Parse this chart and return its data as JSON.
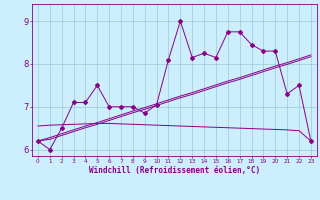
{
  "xlabel": "Windchill (Refroidissement éolien,°C)",
  "bg_color": "#cceeff",
  "line_color": "#880088",
  "grid_color": "#99cccc",
  "x_data": [
    0,
    1,
    2,
    3,
    4,
    5,
    6,
    7,
    8,
    9,
    10,
    11,
    12,
    13,
    14,
    15,
    16,
    17,
    18,
    19,
    20,
    21,
    22,
    23
  ],
  "y_main": [
    6.2,
    6.0,
    6.5,
    7.1,
    7.1,
    7.5,
    7.0,
    7.0,
    7.0,
    6.85,
    7.05,
    8.1,
    9.0,
    8.15,
    8.25,
    8.15,
    8.75,
    8.75,
    8.45,
    8.3,
    8.3,
    7.3,
    7.5,
    6.2
  ],
  "y_trend1": [
    6.2,
    6.24,
    6.33,
    6.42,
    6.51,
    6.59,
    6.68,
    6.77,
    6.86,
    6.94,
    7.03,
    7.12,
    7.21,
    7.29,
    7.38,
    7.47,
    7.56,
    7.64,
    7.73,
    7.82,
    7.91,
    7.99,
    8.08,
    8.17
  ],
  "y_trend2": [
    6.2,
    6.28,
    6.37,
    6.46,
    6.55,
    6.63,
    6.72,
    6.81,
    6.9,
    6.98,
    7.07,
    7.16,
    7.25,
    7.33,
    7.42,
    7.51,
    7.6,
    7.68,
    7.77,
    7.86,
    7.95,
    8.03,
    8.12,
    8.21
  ],
  "y_flat": [
    6.55,
    6.57,
    6.58,
    6.59,
    6.6,
    6.61,
    6.61,
    6.6,
    6.59,
    6.58,
    6.57,
    6.56,
    6.55,
    6.54,
    6.53,
    6.52,
    6.51,
    6.5,
    6.49,
    6.48,
    6.47,
    6.46,
    6.44,
    6.2
  ],
  "ylim": [
    5.85,
    9.4
  ],
  "xlim": [
    -0.5,
    23.5
  ],
  "yticks": [
    6,
    7,
    8,
    9
  ],
  "xticks": [
    0,
    1,
    2,
    3,
    4,
    5,
    6,
    7,
    8,
    9,
    10,
    11,
    12,
    13,
    14,
    15,
    16,
    17,
    18,
    19,
    20,
    21,
    22,
    23
  ]
}
